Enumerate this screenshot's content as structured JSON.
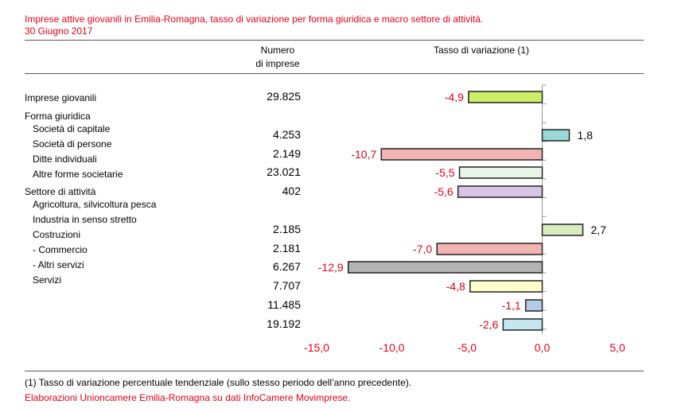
{
  "title_line1": "Imprese attive giovanili  in Emilia-Romagna, tasso di variazione per forma giuridica e macro settore di attività.",
  "title_line2": "30 Giugno 2017",
  "header": {
    "count_line1": "Numero",
    "count_line2": "di imprese",
    "rate": "Tasso di variazione (1)"
  },
  "categories": [
    {
      "label": "Imprese giovanili",
      "indent": false
    },
    {
      "label": "Forma giuridica",
      "indent": false
    },
    {
      "label": "Società di capitale",
      "indent": true
    },
    {
      "label": "Società di persone",
      "indent": true
    },
    {
      "label": "Ditte individuali",
      "indent": true
    },
    {
      "label": "Altre forme societarie",
      "indent": true
    },
    {
      "label": "Settore di attività",
      "indent": false
    },
    {
      "label": "Agricoltura, silvicoltura pesca",
      "indent": true
    },
    {
      "label": "Industria in senso stretto",
      "indent": true
    },
    {
      "label": "Costruzioni",
      "indent": true
    },
    {
      "label": "- Commercio",
      "indent": true
    },
    {
      "label": "- Altri servizi",
      "indent": true
    },
    {
      "label": "Servizi",
      "indent": true
    }
  ],
  "chart_data": {
    "type": "bar",
    "orientation": "horizontal",
    "title": "Tasso di variazione (1)",
    "xlim": [
      -15,
      5
    ],
    "x_ticks": [
      "-15,0",
      "-10,0",
      "-5,0",
      "0,0",
      "5,0"
    ],
    "rows": [
      {
        "count": "29.825",
        "value": -4.9,
        "label": "-4,9",
        "color": "#ccee66"
      },
      {
        "count": "4.253",
        "value": 1.8,
        "label": "1,8",
        "color": "#99d8d8"
      },
      {
        "count": "2.149",
        "value": -10.7,
        "label": "-10,7",
        "color": "#f2b3b3"
      },
      {
        "count": "23.021",
        "value": -5.5,
        "label": "-5,5",
        "color": "#e6f5e6"
      },
      {
        "count": "402",
        "value": -5.6,
        "label": "-5,6",
        "color": "#d9c3e6"
      },
      {
        "count": "2.185",
        "value": 2.7,
        "label": "2,7",
        "color": "#d8ecc0"
      },
      {
        "count": "2.181",
        "value": -7.0,
        "label": "-7,0",
        "color": "#f2b3b3"
      },
      {
        "count": "6.267",
        "value": -12.9,
        "label": "-12,9",
        "color": "#b3b3b3"
      },
      {
        "count": "7.707",
        "value": -4.8,
        "label": "-4,8",
        "color": "#ffffcc"
      },
      {
        "count": "11.485",
        "value": -1.1,
        "label": "-1,1",
        "color": "#b3cce6"
      },
      {
        "count": "19.192",
        "value": -2.6,
        "label": "-2,6",
        "color": "#c6e6ef"
      }
    ],
    "colors": {
      "positive_label": "#000000",
      "negative_label": "#e3001b",
      "tick_label": "#e3001b"
    }
  },
  "footnote": "(1) Tasso di variazione percentuale tendenziale (sullo stesso periodo dell’anno precedente).",
  "source": "Elaborazioni Unioncamere Emilia-Romagna su dati InfoCamere Movimprese."
}
